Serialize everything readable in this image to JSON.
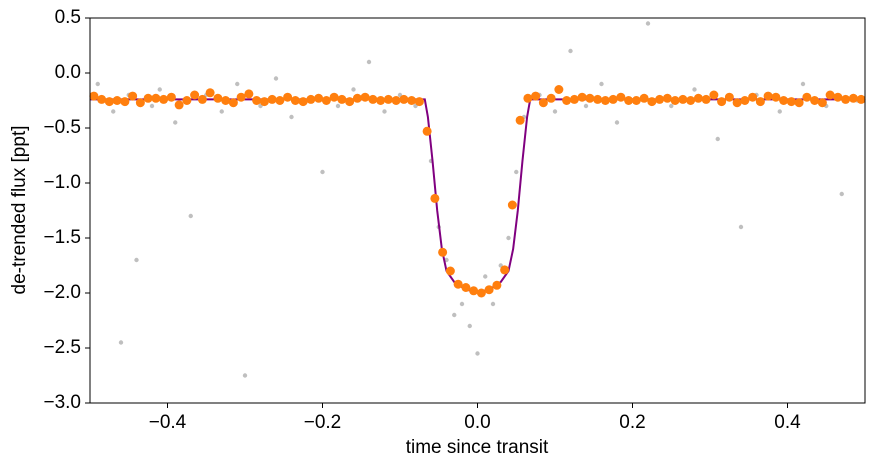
{
  "chart_data": {
    "type": "scatter",
    "xlabel": "time since transit",
    "ylabel": "de-trended flux [ppt]",
    "xlim": [
      -0.5,
      0.5
    ],
    "ylim": [
      -3.0,
      0.5
    ],
    "xticks": [
      {
        "value": -0.4,
        "label": "−0.4"
      },
      {
        "value": -0.2,
        "label": "−0.2"
      },
      {
        "value": 0,
        "label": "0.0"
      },
      0.2,
      0.4
    ],
    "yticks": [
      0.5,
      {
        "value": 0,
        "label": "0.0"
      },
      {
        "value": -0.5,
        "label": "−0.5"
      },
      {
        "value": -1,
        "label": "−1.0"
      },
      {
        "value": -1.5,
        "label": "−1.5"
      },
      {
        "value": -2,
        "label": "−2.0"
      },
      {
        "value": -2.5,
        "label": "−2.5"
      },
      {
        "value": -3,
        "label": "−3.0"
      }
    ],
    "data": {
      "color": "#000000",
      "x": [
        -0.49,
        -0.47,
        -0.46,
        -0.45,
        -0.44,
        -0.42,
        -0.41,
        -0.39,
        -0.37,
        -0.35,
        -0.33,
        -0.31,
        -0.3,
        -0.28,
        -0.26,
        -0.24,
        -0.22,
        -0.2,
        -0.18,
        -0.16,
        -0.14,
        -0.12,
        -0.1,
        -0.08,
        -0.06,
        -0.05,
        -0.04,
        -0.03,
        -0.02,
        -0.01,
        0.0,
        0.01,
        0.02,
        0.03,
        0.04,
        0.05,
        0.06,
        0.08,
        0.1,
        0.12,
        0.14,
        0.16,
        0.18,
        0.2,
        0.22,
        0.25,
        0.28,
        0.31,
        0.34,
        0.36,
        0.39,
        0.42,
        0.45,
        0.47,
        0.49
      ],
      "values": [
        -0.1,
        -0.35,
        -2.45,
        -0.2,
        -1.7,
        -0.3,
        -0.15,
        -0.45,
        -1.3,
        -0.2,
        -0.35,
        -0.1,
        -2.75,
        -0.3,
        -0.05,
        -0.4,
        -0.25,
        -0.9,
        -0.3,
        -0.15,
        0.1,
        -0.35,
        -0.2,
        -0.3,
        -0.8,
        -1.4,
        -1.7,
        -2.2,
        -2.1,
        -2.3,
        -2.55,
        -1.85,
        -2.1,
        -1.75,
        -1.5,
        -0.9,
        -0.4,
        -0.2,
        -0.35,
        0.2,
        -0.3,
        -0.1,
        -0.45,
        -0.25,
        0.45,
        -0.3,
        -0.15,
        -0.6,
        -1.4,
        -0.2,
        -0.35,
        -0.1,
        -0.3,
        -1.1,
        -0.25
      ]
    },
    "binned": {
      "color": "#ff7f0e",
      "x": [
        -0.495,
        -0.485,
        -0.475,
        -0.465,
        -0.455,
        -0.445,
        -0.435,
        -0.425,
        -0.415,
        -0.405,
        -0.395,
        -0.385,
        -0.375,
        -0.365,
        -0.355,
        -0.345,
        -0.335,
        -0.325,
        -0.315,
        -0.305,
        -0.295,
        -0.285,
        -0.275,
        -0.265,
        -0.255,
        -0.245,
        -0.235,
        -0.225,
        -0.215,
        -0.205,
        -0.195,
        -0.185,
        -0.175,
        -0.165,
        -0.155,
        -0.145,
        -0.135,
        -0.125,
        -0.115,
        -0.105,
        -0.095,
        -0.085,
        -0.075,
        -0.065,
        -0.055,
        -0.045,
        -0.035,
        -0.025,
        -0.015,
        -0.005,
        0.005,
        0.015,
        0.025,
        0.035,
        0.045,
        0.055,
        0.065,
        0.075,
        0.085,
        0.095,
        0.105,
        0.115,
        0.125,
        0.135,
        0.145,
        0.155,
        0.165,
        0.175,
        0.185,
        0.195,
        0.205,
        0.215,
        0.225,
        0.235,
        0.245,
        0.255,
        0.265,
        0.275,
        0.285,
        0.295,
        0.305,
        0.315,
        0.325,
        0.335,
        0.345,
        0.355,
        0.365,
        0.375,
        0.385,
        0.395,
        0.405,
        0.415,
        0.425,
        0.435,
        0.445,
        0.455,
        0.465,
        0.475,
        0.485,
        0.495
      ],
      "values": [
        -0.21,
        -0.24,
        -0.26,
        -0.25,
        -0.26,
        -0.21,
        -0.27,
        -0.23,
        -0.23,
        -0.24,
        -0.22,
        -0.29,
        -0.25,
        -0.2,
        -0.24,
        -0.18,
        -0.23,
        -0.25,
        -0.27,
        -0.22,
        -0.19,
        -0.25,
        -0.26,
        -0.24,
        -0.25,
        -0.22,
        -0.25,
        -0.26,
        -0.24,
        -0.23,
        -0.25,
        -0.22,
        -0.24,
        -0.26,
        -0.23,
        -0.22,
        -0.24,
        -0.25,
        -0.24,
        -0.25,
        -0.24,
        -0.25,
        -0.26,
        -0.53,
        -1.14,
        -1.63,
        -1.8,
        -1.92,
        -1.95,
        -1.98,
        -2.0,
        -1.97,
        -1.93,
        -1.79,
        -1.2,
        -0.43,
        -0.23,
        -0.21,
        -0.27,
        -0.23,
        -0.15,
        -0.25,
        -0.24,
        -0.22,
        -0.23,
        -0.24,
        -0.25,
        -0.24,
        -0.22,
        -0.25,
        -0.25,
        -0.23,
        -0.26,
        -0.24,
        -0.23,
        -0.25,
        -0.24,
        -0.25,
        -0.23,
        -0.24,
        -0.2,
        -0.26,
        -0.22,
        -0.27,
        -0.25,
        -0.22,
        -0.26,
        -0.21,
        -0.22,
        -0.25,
        -0.26,
        -0.27,
        -0.22,
        -0.25,
        -0.27,
        -0.2,
        -0.22,
        -0.24,
        -0.23,
        -0.24
      ]
    },
    "model": {
      "color": "#800080",
      "x": [
        -0.5,
        -0.068,
        -0.064,
        -0.058,
        -0.052,
        -0.046,
        -0.04,
        -0.03,
        -0.015,
        0,
        0.015,
        0.03,
        0.04,
        0.046,
        0.052,
        0.058,
        0.064,
        0.068,
        0.5
      ],
      "values": [
        -0.24,
        -0.24,
        -0.4,
        -0.8,
        -1.25,
        -1.6,
        -1.8,
        -1.9,
        -1.97,
        -1.99,
        -1.97,
        -1.9,
        -1.8,
        -1.6,
        -1.25,
        -0.8,
        -0.4,
        -0.24,
        -0.24
      ]
    }
  }
}
